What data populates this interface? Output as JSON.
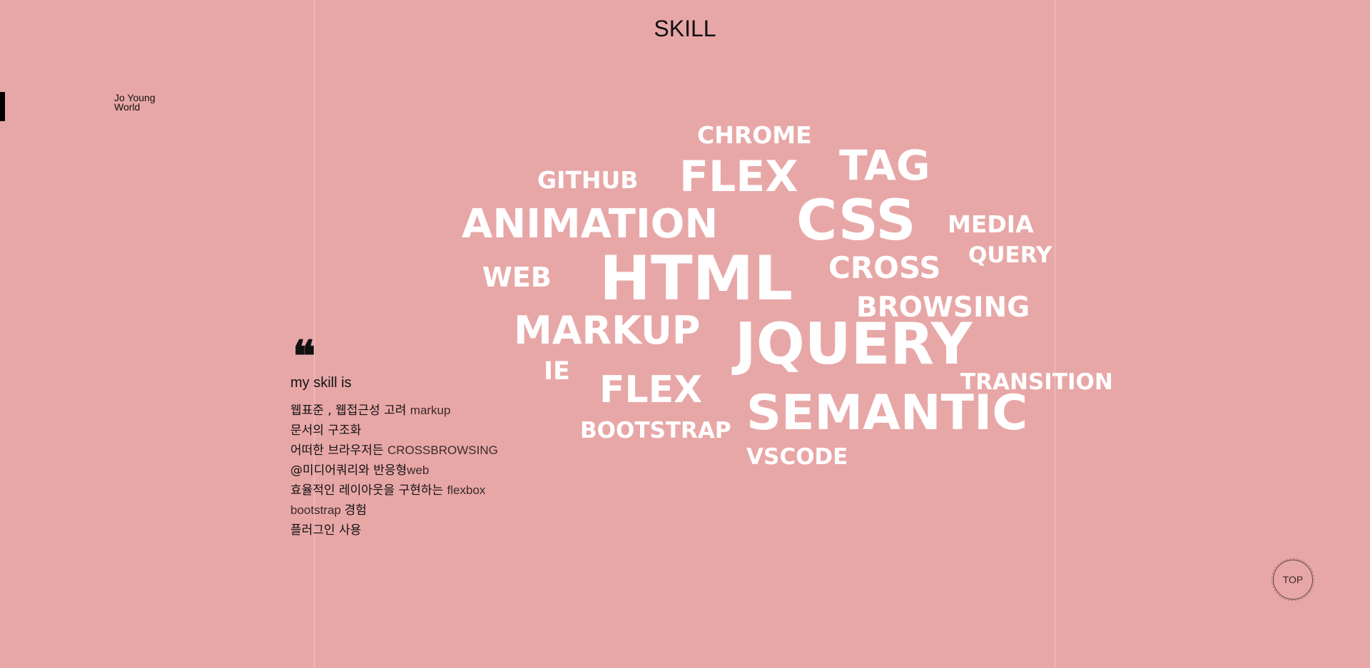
{
  "header": {
    "title": "SKILL"
  },
  "logo": {
    "line1": "Jo Young",
    "line2": "World"
  },
  "intro": {
    "quote_glyph": "❝",
    "heading": "my skill is",
    "lines": [
      {
        "ko": "웹표준 , 웹접근성 고려 ",
        "en": "markup"
      },
      {
        "ko": "문서의 구조화",
        "en": ""
      },
      {
        "ko": "어떠한 브라우저든 ",
        "en": "CROSSBROWSING"
      },
      {
        "ko": "@미디어쿼리와 반응형",
        "en": "web"
      },
      {
        "ko": "효율적인 레이아웃을 구현하는 ",
        "en": "flexbox"
      },
      {
        "ko": "경험",
        "en": "bootstrap ",
        "en_first": true
      },
      {
        "ko": "플러그인 사용",
        "en": ""
      }
    ]
  },
  "word_cloud": {
    "words": [
      "CHROME",
      "GITHUB",
      "FLEX",
      "TAG",
      "ANIMATION",
      "CSS",
      "MEDIA",
      "QUERY",
      "WEB",
      "HTML",
      "CROSS",
      "BROWSING",
      "MARKUP",
      "JQUERY",
      "IE",
      "FLEX",
      "TRANSITION",
      "SEMANTIC",
      "BOOTSTRAP",
      "VSCODE"
    ],
    "color": "#ffffff"
  },
  "top_button": {
    "label": "TOP"
  },
  "colors": {
    "background": "#e8a7a7",
    "text": "#111111",
    "accent": "#ffffff"
  }
}
